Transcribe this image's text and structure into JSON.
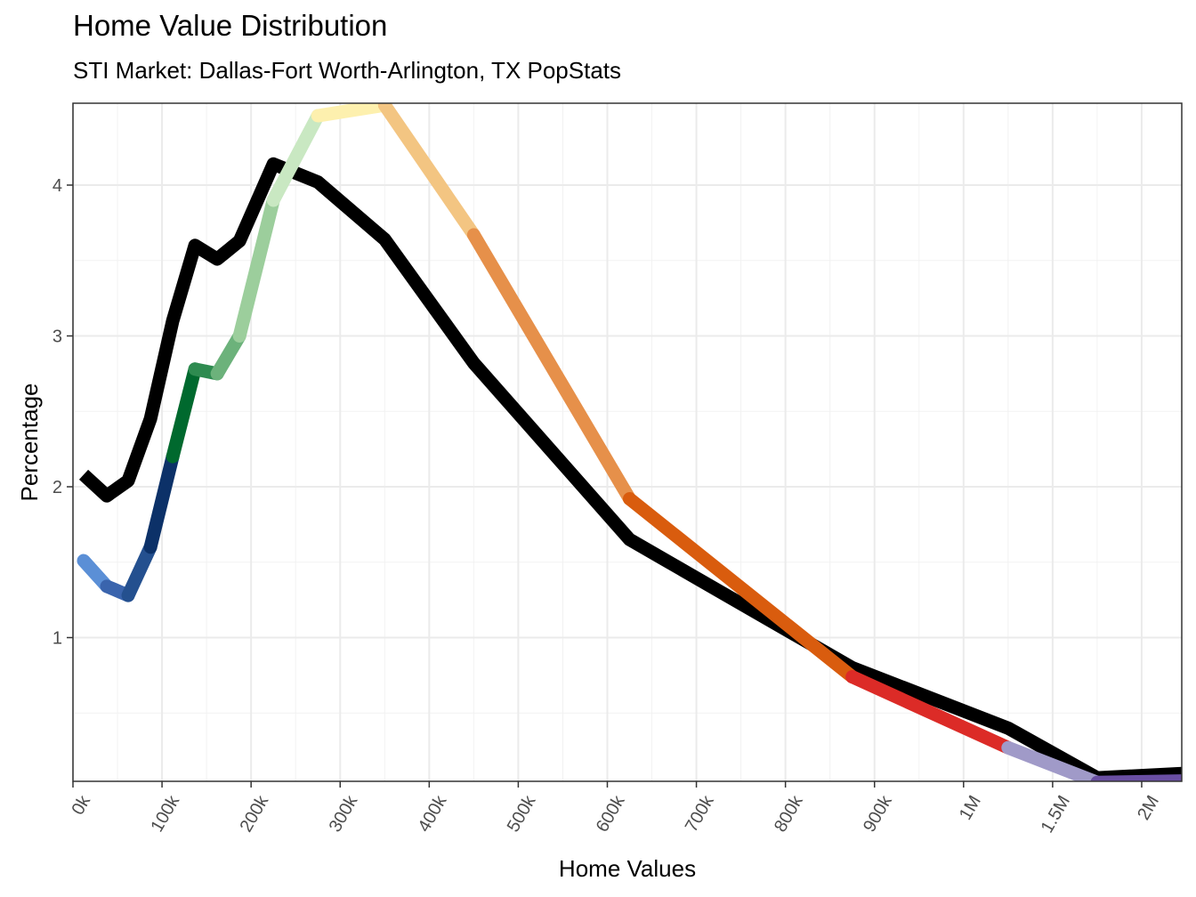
{
  "chart_data": {
    "type": "line",
    "title": "Home Value Distribution",
    "subtitle": "STI Market: Dallas-Fort Worth-Arlington, TX PopStats",
    "xlabel": "Home Values",
    "ylabel": "Percentage",
    "grid": true,
    "legend": "none",
    "x_tick_labels": [
      "0k",
      "100k",
      "200k",
      "300k",
      "400k",
      "500k",
      "600k",
      "700k",
      "800k",
      "900k",
      "1M",
      "1.5M",
      "2M"
    ],
    "y_ticks": [
      1,
      2,
      3,
      4
    ],
    "ylim": [
      0.04,
      4.53
    ],
    "series": [
      {
        "color": "#000000",
        "points": [
          {
            "x": 0.12,
            "y": 2.08
          },
          {
            "x": 0.38,
            "y": 1.94
          },
          {
            "x": 0.62,
            "y": 2.04
          },
          {
            "x": 0.87,
            "y": 2.45
          },
          {
            "x": 1.12,
            "y": 3.1
          },
          {
            "x": 1.37,
            "y": 3.6
          },
          {
            "x": 1.62,
            "y": 3.51
          },
          {
            "x": 1.87,
            "y": 3.63
          },
          {
            "x": 2.25,
            "y": 4.14
          },
          {
            "x": 2.75,
            "y": 4.02
          },
          {
            "x": 3.5,
            "y": 3.64
          },
          {
            "x": 4.5,
            "y": 2.82
          },
          {
            "x": 6.25,
            "y": 1.65
          },
          {
            "x": 8.75,
            "y": 0.8
          },
          {
            "x": 10.5,
            "y": 0.4
          },
          {
            "x": 11.5,
            "y": 0.07
          },
          {
            "x": 12.5,
            "y": 0.1
          }
        ]
      },
      {
        "segments": [
          {
            "color": "#5b8fd6",
            "from": {
              "x": 0.12,
              "y": 1.51
            },
            "to": {
              "x": 0.38,
              "y": 1.34
            }
          },
          {
            "color": "#3a64ad",
            "from": {
              "x": 0.38,
              "y": 1.34
            },
            "to": {
              "x": 0.62,
              "y": 1.28
            }
          },
          {
            "color": "#24508f",
            "from": {
              "x": 0.62,
              "y": 1.28
            },
            "to": {
              "x": 0.87,
              "y": 1.6
            }
          },
          {
            "color": "#0c3168",
            "from": {
              "x": 0.87,
              "y": 1.6
            },
            "to": {
              "x": 1.12,
              "y": 2.2
            }
          },
          {
            "color": "#00692e",
            "from": {
              "x": 1.12,
              "y": 2.2
            },
            "to": {
              "x": 1.37,
              "y": 2.78
            }
          },
          {
            "color": "#2e8b50",
            "from": {
              "x": 1.37,
              "y": 2.78
            },
            "to": {
              "x": 1.62,
              "y": 2.75
            }
          },
          {
            "color": "#6cb27b",
            "from": {
              "x": 1.62,
              "y": 2.75
            },
            "to": {
              "x": 1.87,
              "y": 3.0
            }
          },
          {
            "color": "#9cce9c",
            "from": {
              "x": 1.87,
              "y": 3.0
            },
            "to": {
              "x": 2.25,
              "y": 3.9
            }
          },
          {
            "color": "#c9e8c2",
            "from": {
              "x": 2.25,
              "y": 3.9
            },
            "to": {
              "x": 2.75,
              "y": 4.46
            }
          },
          {
            "color": "#fdf0ae",
            "from": {
              "x": 2.75,
              "y": 4.46
            },
            "to": {
              "x": 3.5,
              "y": 4.53
            }
          },
          {
            "color": "#f3c582",
            "from": {
              "x": 3.5,
              "y": 4.53
            },
            "to": {
              "x": 4.5,
              "y": 3.67
            }
          },
          {
            "color": "#e6904a",
            "from": {
              "x": 4.5,
              "y": 3.67
            },
            "to": {
              "x": 6.25,
              "y": 1.92
            }
          },
          {
            "color": "#d95c0e",
            "from": {
              "x": 6.25,
              "y": 1.92
            },
            "to": {
              "x": 8.75,
              "y": 0.74
            }
          },
          {
            "color": "#dc2b27",
            "from": {
              "x": 8.75,
              "y": 0.74
            },
            "to": {
              "x": 10.5,
              "y": 0.27
            }
          },
          {
            "color": "#a09ac8",
            "from": {
              "x": 10.5,
              "y": 0.27
            },
            "to": {
              "x": 11.5,
              "y": 0.04
            }
          },
          {
            "color": "#6a4fa3",
            "from": {
              "x": 11.5,
              "y": 0.04
            },
            "to": {
              "x": 12.5,
              "y": 0.05
            }
          }
        ]
      }
    ]
  }
}
